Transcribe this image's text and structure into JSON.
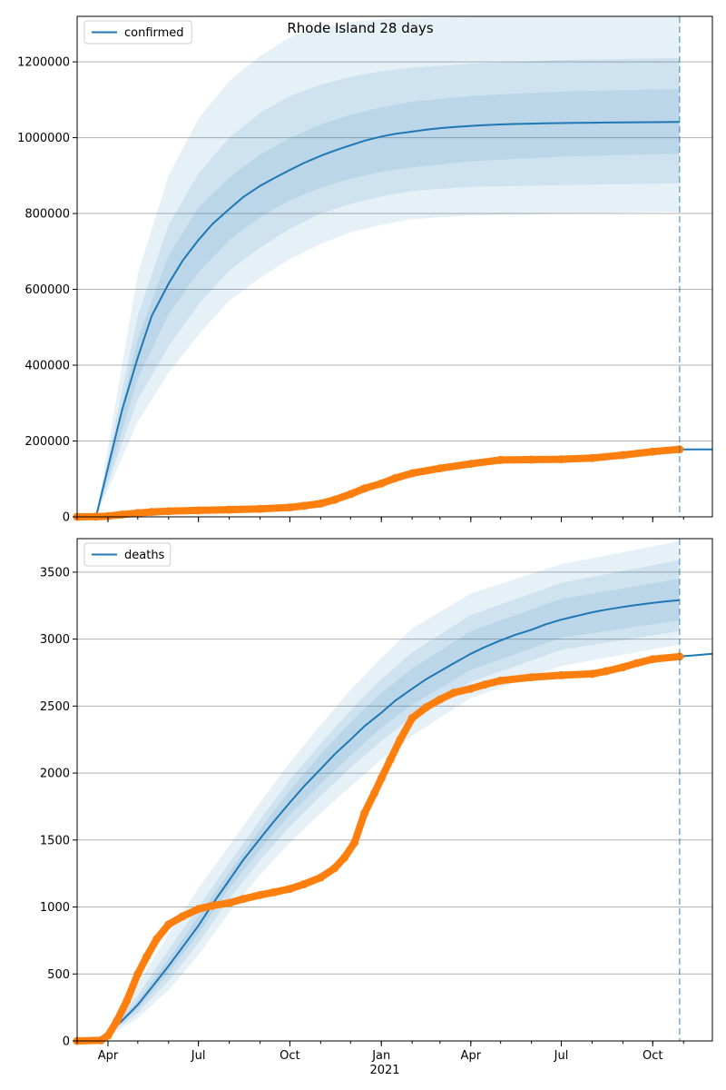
{
  "colors": {
    "model": "#1f77b4",
    "observed": "#ff7f0e",
    "band": "#1f77b4",
    "grid": "#b0b0b0",
    "forecast_line": "#1f77b4"
  },
  "chart_data": [
    {
      "type": "line",
      "title": "Rhode Island 28 days",
      "legend": [
        "confirmed"
      ],
      "legend_position": "top-left",
      "grid": "y",
      "x_range": [
        "2020-03-01",
        "2021-11-30"
      ],
      "ylim": [
        0,
        1320000
      ],
      "yticks": [
        0,
        200000,
        400000,
        600000,
        800000,
        1000000,
        1200000
      ],
      "ytick_labels": [
        "0",
        "200000",
        "400000",
        "600000",
        "800000",
        "1000000",
        "1200000"
      ],
      "xtick_labels": [],
      "forecast_start": "2021-10-28",
      "series": [
        {
          "name": "confirmed",
          "role": "model_median",
          "x": [
            "2020-03-20",
            "2020-04-01",
            "2020-04-15",
            "2020-05-01",
            "2020-05-15",
            "2020-06-01",
            "2020-06-15",
            "2020-07-01",
            "2020-07-15",
            "2020-08-01",
            "2020-08-15",
            "2020-09-01",
            "2020-09-15",
            "2020-10-01",
            "2020-10-15",
            "2020-11-01",
            "2020-11-15",
            "2020-12-01",
            "2020-12-15",
            "2021-01-01",
            "2021-01-15",
            "2021-02-01",
            "2021-02-15",
            "2021-03-01",
            "2021-03-15",
            "2021-04-01",
            "2021-04-15",
            "2021-05-01",
            "2021-05-15",
            "2021-06-01",
            "2021-06-15",
            "2021-07-01",
            "2021-07-15",
            "2021-08-01",
            "2021-08-15",
            "2021-09-01",
            "2021-09-15",
            "2021-10-01",
            "2021-10-15",
            "2021-10-28"
          ],
          "y": [
            0,
            130000,
            280000,
            420000,
            530000,
            615000,
            675000,
            730000,
            772000,
            812000,
            843000,
            873000,
            893000,
            915000,
            933000,
            952000,
            966000,
            980000,
            992000,
            1003000,
            1010000,
            1016000,
            1021000,
            1025000,
            1028000,
            1031000,
            1033000,
            1035000,
            1036000,
            1037000,
            1038000,
            1038500,
            1039000,
            1039500,
            1040000,
            1040300,
            1040600,
            1040900,
            1041100,
            1041300
          ]
        },
        {
          "name": "",
          "role": "observed",
          "x": [
            "2020-03-01",
            "2020-03-20",
            "2020-04-01",
            "2020-04-15",
            "2020-05-01",
            "2020-05-15",
            "2020-06-01",
            "2020-07-01",
            "2020-08-01",
            "2020-09-01",
            "2020-10-01",
            "2020-10-15",
            "2020-11-01",
            "2020-11-15",
            "2020-12-01",
            "2020-12-15",
            "2021-01-01",
            "2021-01-15",
            "2021-02-01",
            "2021-03-01",
            "2021-04-01",
            "2021-05-01",
            "2021-06-01",
            "2021-07-01",
            "2021-08-01",
            "2021-09-01",
            "2021-10-01",
            "2021-10-28"
          ],
          "y": [
            0,
            500,
            2000,
            6000,
            10000,
            13000,
            15000,
            17000,
            19000,
            21000,
            25000,
            29000,
            35000,
            45000,
            60000,
            75000,
            88000,
            102000,
            115000,
            128000,
            140000,
            150000,
            151000,
            152000,
            155000,
            163000,
            172000,
            178000
          ]
        },
        {
          "name": "",
          "role": "forecast",
          "x": [
            "2021-10-28",
            "2021-11-30"
          ],
          "y": [
            178000,
            178000
          ]
        }
      ],
      "bands": [
        {
          "x": [
            "2020-03-20",
            "2020-05-01",
            "2020-06-01",
            "2020-07-01",
            "2020-08-01",
            "2020-09-01",
            "2020-10-01",
            "2020-11-01",
            "2020-12-01",
            "2021-01-01",
            "2021-02-01",
            "2021-04-01",
            "2021-07-01",
            "2021-10-28"
          ],
          "low": [
            0,
            250000,
            380000,
            480000,
            570000,
            630000,
            680000,
            720000,
            750000,
            770000,
            785000,
            795000,
            800000,
            805000
          ],
          "high": [
            0,
            640000,
            900000,
            1050000,
            1150000,
            1215000,
            1265000,
            1290000,
            1305000,
            1312000,
            1315000,
            1318000,
            1320000,
            1320000
          ]
        },
        {
          "x": [
            "2020-03-20",
            "2020-05-01",
            "2020-06-01",
            "2020-07-01",
            "2020-08-01",
            "2020-09-01",
            "2020-10-01",
            "2020-11-01",
            "2020-12-01",
            "2021-01-01",
            "2021-02-01",
            "2021-04-01",
            "2021-07-01",
            "2021-10-28"
          ],
          "low": [
            0,
            310000,
            450000,
            560000,
            650000,
            710000,
            760000,
            800000,
            825000,
            845000,
            860000,
            870000,
            875000,
            880000
          ],
          "high": [
            0,
            530000,
            770000,
            905000,
            1000000,
            1065000,
            1110000,
            1140000,
            1160000,
            1175000,
            1185000,
            1195000,
            1205000,
            1210000
          ]
        },
        {
          "x": [
            "2020-03-20",
            "2020-05-01",
            "2020-06-01",
            "2020-07-01",
            "2020-08-01",
            "2020-09-01",
            "2020-10-01",
            "2020-11-01",
            "2020-12-01",
            "2021-01-01",
            "2021-02-01",
            "2021-04-01",
            "2021-07-01",
            "2021-10-28"
          ],
          "low": [
            0,
            365000,
            535000,
            645000,
            730000,
            790000,
            835000,
            868000,
            892000,
            910000,
            922000,
            938000,
            950000,
            958000
          ],
          "high": [
            0,
            470000,
            690000,
            815000,
            895000,
            955000,
            1000000,
            1035000,
            1060000,
            1080000,
            1095000,
            1110000,
            1122000,
            1128000
          ]
        }
      ]
    },
    {
      "type": "line",
      "legend": [
        "deaths"
      ],
      "legend_position": "top-left",
      "grid": "y",
      "x_range": [
        "2020-03-01",
        "2021-11-30"
      ],
      "ylim": [
        0,
        3750
      ],
      "yticks": [
        0,
        500,
        1000,
        1500,
        2000,
        2500,
        3000,
        3500
      ],
      "ytick_labels": [
        "0",
        "500",
        "1000",
        "1500",
        "2000",
        "2500",
        "3000",
        "3500"
      ],
      "xtick_labels": [
        "Apr",
        "Jul",
        "Oct",
        "Jan",
        "Apr",
        "Jul",
        "Oct"
      ],
      "xtick_dates": [
        "2020-04-01",
        "2020-07-01",
        "2020-10-01",
        "2021-01-01",
        "2021-04-01",
        "2021-07-01",
        "2021-10-01"
      ],
      "year_label": "2021",
      "forecast_start": "2021-10-28",
      "series": [
        {
          "name": "deaths",
          "role": "model_median",
          "x": [
            "2020-03-20",
            "2020-04-01",
            "2020-04-15",
            "2020-05-01",
            "2020-05-15",
            "2020-06-01",
            "2020-06-15",
            "2020-07-01",
            "2020-07-15",
            "2020-08-01",
            "2020-08-15",
            "2020-09-01",
            "2020-09-15",
            "2020-10-01",
            "2020-10-15",
            "2020-11-01",
            "2020-11-15",
            "2020-12-01",
            "2020-12-15",
            "2021-01-01",
            "2021-01-15",
            "2021-02-01",
            "2021-02-15",
            "2021-03-01",
            "2021-03-15",
            "2021-04-01",
            "2021-04-15",
            "2021-05-01",
            "2021-05-15",
            "2021-06-01",
            "2021-06-15",
            "2021-07-01",
            "2021-07-15",
            "2021-08-01",
            "2021-08-15",
            "2021-09-01",
            "2021-09-15",
            "2021-10-01",
            "2021-10-15",
            "2021-10-28"
          ],
          "y": [
            0,
            60,
            150,
            270,
            400,
            560,
            700,
            860,
            1020,
            1200,
            1350,
            1510,
            1640,
            1780,
            1900,
            2030,
            2140,
            2250,
            2350,
            2450,
            2540,
            2630,
            2700,
            2760,
            2820,
            2890,
            2940,
            2990,
            3030,
            3070,
            3110,
            3145,
            3170,
            3200,
            3220,
            3240,
            3255,
            3270,
            3282,
            3290
          ]
        },
        {
          "name": "",
          "role": "observed",
          "x": [
            "2020-03-01",
            "2020-03-25",
            "2020-04-01",
            "2020-04-10",
            "2020-04-20",
            "2020-05-01",
            "2020-05-10",
            "2020-05-20",
            "2020-06-01",
            "2020-06-15",
            "2020-07-01",
            "2020-07-15",
            "2020-08-01",
            "2020-08-15",
            "2020-09-01",
            "2020-09-15",
            "2020-10-01",
            "2020-10-15",
            "2020-11-01",
            "2020-11-15",
            "2020-11-25",
            "2020-12-05",
            "2020-12-15",
            "2020-12-25",
            "2021-01-01",
            "2021-01-10",
            "2021-01-20",
            "2021-02-01",
            "2021-02-15",
            "2021-03-01",
            "2021-03-15",
            "2021-04-01",
            "2021-04-15",
            "2021-05-01",
            "2021-06-01",
            "2021-07-01",
            "2021-08-01",
            "2021-08-15",
            "2021-09-01",
            "2021-09-15",
            "2021-10-01",
            "2021-10-28"
          ],
          "y": [
            0,
            5,
            40,
            150,
            300,
            500,
            630,
            760,
            870,
            930,
            985,
            1010,
            1030,
            1060,
            1090,
            1110,
            1135,
            1170,
            1220,
            1290,
            1370,
            1480,
            1700,
            1850,
            1960,
            2100,
            2250,
            2410,
            2490,
            2550,
            2600,
            2630,
            2660,
            2690,
            2715,
            2730,
            2740,
            2760,
            2790,
            2820,
            2850,
            2870
          ]
        },
        {
          "name": "",
          "role": "forecast",
          "x": [
            "2021-10-28",
            "2021-11-30"
          ],
          "y": [
            2870,
            2890
          ]
        }
      ],
      "bands": [
        {
          "x": [
            "2020-03-25",
            "2020-05-01",
            "2020-06-01",
            "2020-07-01",
            "2020-08-01",
            "2020-09-01",
            "2020-10-01",
            "2020-11-01",
            "2020-12-01",
            "2021-01-01",
            "2021-02-01",
            "2021-04-01",
            "2021-07-01",
            "2021-10-28"
          ],
          "low": [
            0,
            170,
            380,
            640,
            960,
            1240,
            1480,
            1700,
            1900,
            2100,
            2280,
            2560,
            2800,
            2960
          ],
          "high": [
            0,
            420,
            800,
            1140,
            1460,
            1780,
            2080,
            2360,
            2620,
            2860,
            3080,
            3340,
            3560,
            3730
          ]
        },
        {
          "x": [
            "2020-03-25",
            "2020-05-01",
            "2020-06-01",
            "2020-07-01",
            "2020-08-01",
            "2020-09-01",
            "2020-10-01",
            "2020-11-01",
            "2020-12-01",
            "2021-01-01",
            "2021-02-01",
            "2021-04-01",
            "2021-07-01",
            "2021-10-28"
          ],
          "low": [
            0,
            210,
            450,
            730,
            1060,
            1350,
            1600,
            1830,
            2040,
            2240,
            2420,
            2680,
            2920,
            3060
          ],
          "high": [
            0,
            340,
            680,
            1000,
            1330,
            1650,
            1950,
            2220,
            2470,
            2700,
            2900,
            3180,
            3420,
            3590
          ]
        },
        {
          "x": [
            "2020-03-25",
            "2020-05-01",
            "2020-06-01",
            "2020-07-01",
            "2020-08-01",
            "2020-09-01",
            "2020-10-01",
            "2020-11-01",
            "2020-12-01",
            "2021-01-01",
            "2021-02-01",
            "2021-04-01",
            "2021-07-01",
            "2021-10-28"
          ],
          "low": [
            0,
            240,
            510,
            800,
            1140,
            1430,
            1690,
            1920,
            2130,
            2340,
            2510,
            2770,
            3010,
            3140
          ],
          "high": [
            0,
            300,
            610,
            930,
            1260,
            1580,
            1870,
            2140,
            2380,
            2600,
            2780,
            3060,
            3300,
            3450
          ]
        }
      ]
    }
  ]
}
